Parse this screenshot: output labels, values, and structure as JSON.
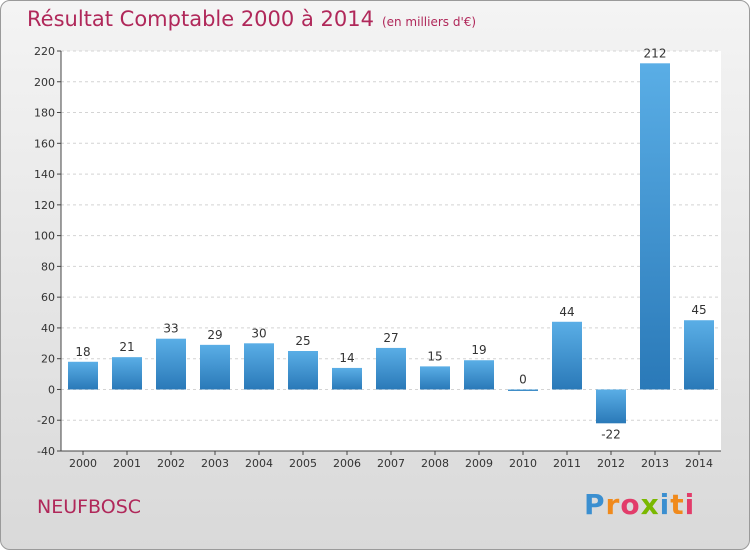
{
  "chart_data": {
    "type": "bar",
    "title": "Résultat Comptable 2000 à 2014",
    "subtitle": "(en milliers d'€)",
    "categories": [
      "2000",
      "2001",
      "2002",
      "2003",
      "2004",
      "2005",
      "2006",
      "2007",
      "2008",
      "2009",
      "2010",
      "2011",
      "2012",
      "2013",
      "2014"
    ],
    "values": [
      18,
      21,
      33,
      29,
      30,
      25,
      14,
      27,
      15,
      19,
      0,
      44,
      -22,
      212,
      45
    ],
    "value_labels": [
      "18",
      "21",
      "33",
      "29",
      "30",
      "25",
      "14",
      "27",
      "15",
      "19",
      "0",
      "44",
      "-22",
      "212",
      "45"
    ],
    "ylim": [
      -40,
      220
    ],
    "yticks": [
      -40,
      -20,
      0,
      20,
      40,
      60,
      80,
      100,
      120,
      140,
      160,
      180,
      200,
      220
    ],
    "ytick_labels": [
      "-40",
      "-20",
      "0",
      "20",
      "40",
      "60",
      "80",
      "100",
      "120",
      "140",
      "160",
      "180",
      "200",
      "220"
    ],
    "xlabel": "",
    "ylabel": "",
    "grid": true,
    "bar_color_top": "#5aaee6",
    "bar_color_bottom": "#2a79b8",
    "title_color": "#b0285a"
  },
  "footer": {
    "town": "NEUFBOSC",
    "logo": [
      "P",
      "r",
      "o",
      "x",
      "i",
      "t",
      "i"
    ],
    "logo_colors": [
      "#3b8fd0",
      "#f08a1c",
      "#e23c6a",
      "#7ab800",
      "#3b8fd0",
      "#f08a1c",
      "#e23c6a"
    ]
  }
}
